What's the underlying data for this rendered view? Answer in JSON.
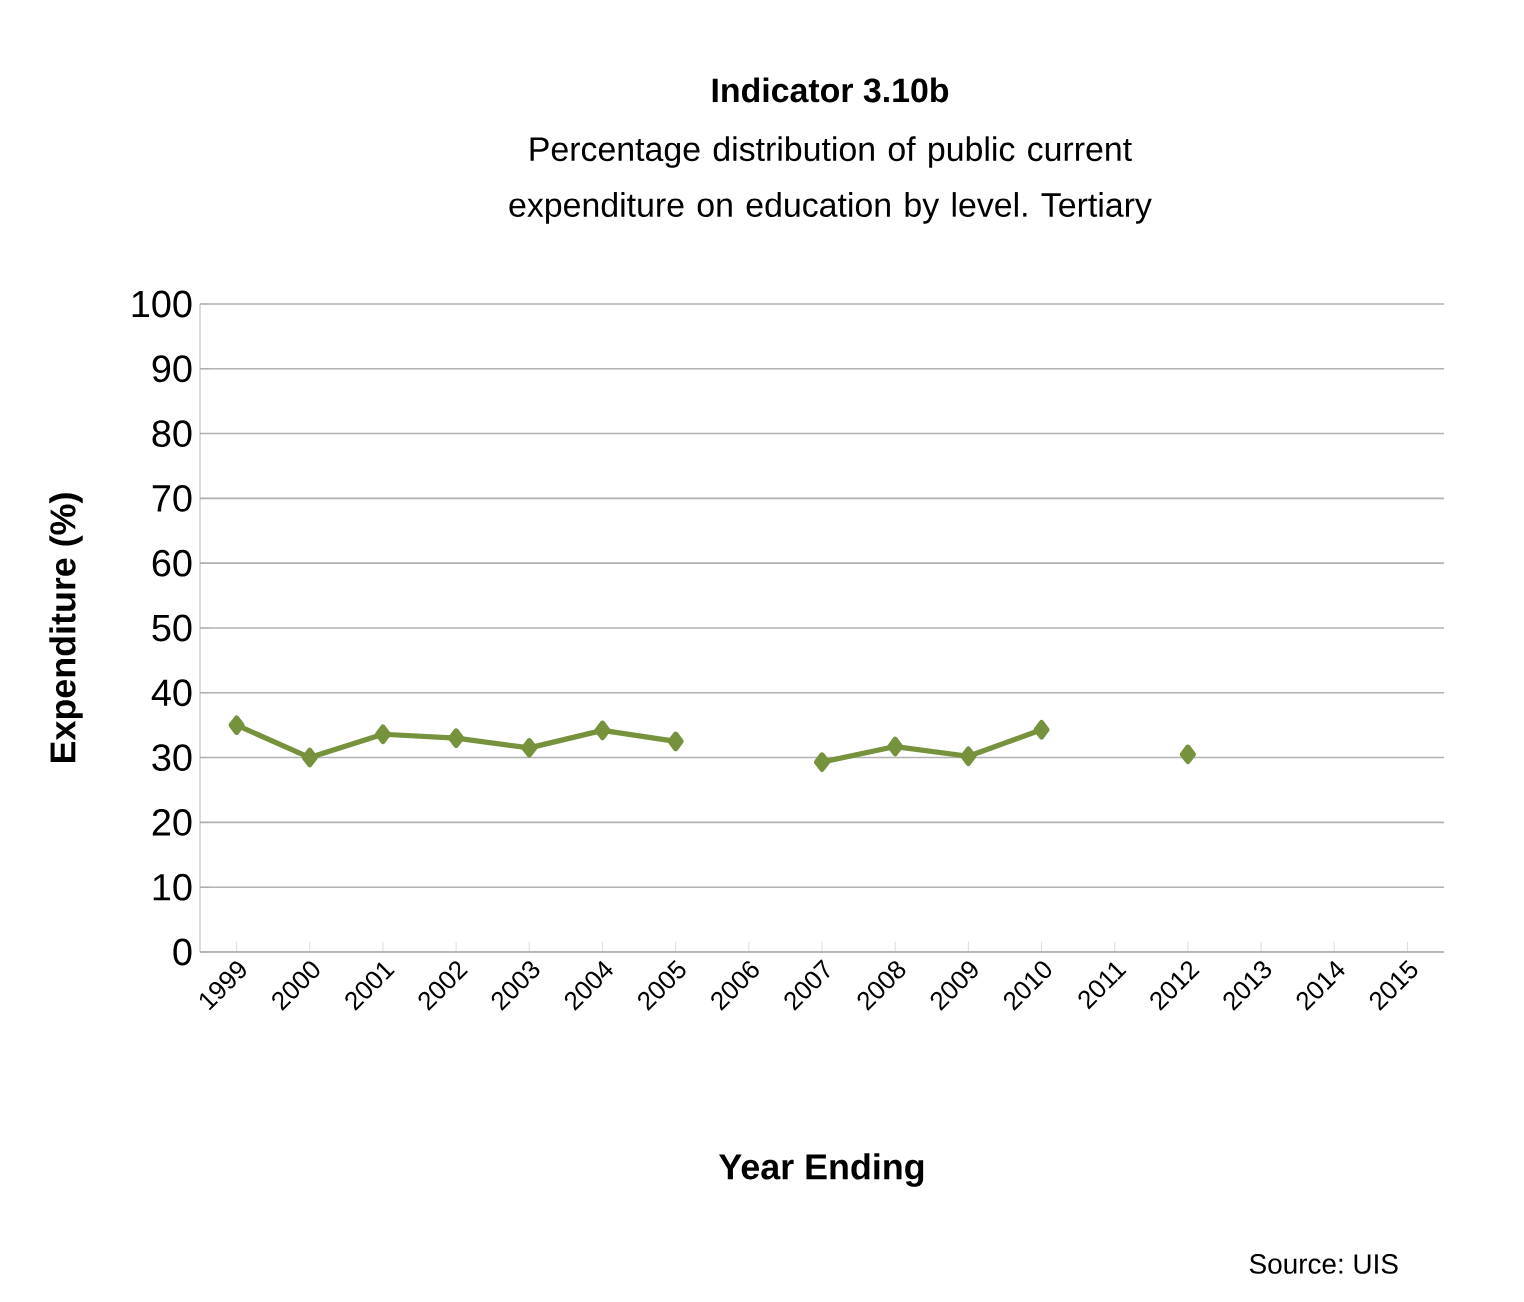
{
  "chart_data": {
    "type": "line",
    "title": "Indicator 3.10b",
    "subtitle": "Percentage distribution of public current expenditure on education by level. Tertiary",
    "xlabel": "Year Ending",
    "ylabel": "Expenditure (%)",
    "categories": [
      "1999",
      "2000",
      "2001",
      "2002",
      "2003",
      "2004",
      "2005",
      "2006",
      "2007",
      "2008",
      "2009",
      "2010",
      "2011",
      "2012",
      "2013",
      "2014",
      "2015"
    ],
    "series": [
      {
        "color": "#76923c",
        "values": [
          35,
          30,
          33.6,
          33,
          31.5,
          34.2,
          32.5,
          null,
          29.3,
          31.7,
          30.2,
          34.3,
          null,
          30.5,
          null,
          null,
          null
        ]
      }
    ],
    "ylim": [
      0,
      100
    ],
    "yticks": [
      0,
      10,
      20,
      30,
      40,
      50,
      60,
      70,
      80,
      90,
      100
    ],
    "grid": "y",
    "marker": "diamond",
    "line_style": "solid",
    "annotations": [
      "Source: UIS"
    ]
  }
}
